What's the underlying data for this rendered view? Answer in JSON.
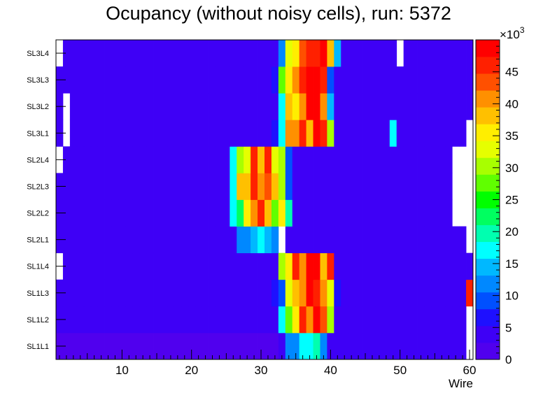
{
  "chart_data": {
    "type": "heatmap",
    "title": "Ocupancy (without noisy cells), run: 5372",
    "xlabel": "Wire",
    "ylabel": "",
    "x_range": [
      0.5,
      60.5
    ],
    "x_ticks": [
      10,
      20,
      30,
      40,
      50,
      60
    ],
    "y_categories": [
      "SL1L1",
      "SL1L2",
      "SL1L3",
      "SL1L4",
      "SL2L1",
      "SL2L2",
      "SL2L3",
      "SL2L4",
      "SL3L1",
      "SL3L2",
      "SL3L3",
      "SL3L4"
    ],
    "z_range": [
      0,
      50000
    ],
    "z_ticks": [
      0,
      5,
      10,
      15,
      20,
      25,
      30,
      35,
      40,
      45
    ],
    "z_multiplier_label": "×10",
    "z_multiplier_exp": "3",
    "palette": [
      "#5000ee",
      "#3e00f6",
      "#1e10ff",
      "#0050ff",
      "#0088ff",
      "#00b8ff",
      "#00ffff",
      "#00ffb0",
      "#00ff60",
      "#00ff00",
      "#60ff00",
      "#a8ff00",
      "#e6ff00",
      "#ffee00",
      "#ffc000",
      "#ff9000",
      "#ff5000",
      "#ff2000",
      "#ff0000"
    ],
    "wire_values_k": [
      [
        0,
        0,
        0,
        0,
        0,
        0,
        0,
        0,
        0,
        0,
        0,
        0,
        0,
        0,
        0,
        0,
        0,
        0,
        0,
        0,
        0,
        0,
        0,
        0,
        0,
        0,
        0,
        0,
        0,
        0,
        0,
        0,
        4,
        13,
        13,
        17,
        17,
        19,
        13,
        5,
        3,
        3,
        3,
        3,
        3,
        3,
        3,
        3,
        3,
        3,
        3,
        3,
        3,
        3,
        3,
        3,
        3,
        3,
        3,
        null
      ],
      [
        3,
        3,
        3,
        3,
        3,
        3,
        3,
        3,
        3,
        3,
        3,
        3,
        3,
        3,
        3,
        3,
        3,
        3,
        3,
        3,
        3,
        3,
        3,
        3,
        3,
        3,
        3,
        3,
        5,
        5,
        5,
        5,
        16,
        27,
        36,
        45,
        40,
        49,
        43,
        30,
        5,
        3,
        3,
        3,
        3,
        3,
        3,
        3,
        3,
        3,
        3,
        3,
        3,
        3,
        3,
        3,
        3,
        3,
        3,
        null
      ],
      [
        3,
        3,
        3,
        3,
        3,
        3,
        3,
        3,
        3,
        3,
        3,
        3,
        3,
        3,
        3,
        3,
        3,
        3,
        3,
        3,
        3,
        3,
        3,
        3,
        3,
        3,
        3,
        3,
        5,
        5,
        5,
        7,
        9,
        34,
        37,
        41,
        49,
        45,
        40,
        34,
        7,
        3,
        3,
        3,
        3,
        3,
        3,
        3,
        3,
        3,
        3,
        3,
        3,
        3,
        3,
        3,
        3,
        3,
        3,
        45
      ],
      [
        null,
        3,
        3,
        3,
        3,
        3,
        3,
        3,
        3,
        3,
        3,
        3,
        3,
        3,
        3,
        3,
        3,
        3,
        3,
        3,
        3,
        3,
        3,
        3,
        3,
        3,
        3,
        3,
        5,
        5,
        5,
        5,
        30,
        35,
        45,
        41,
        49,
        49,
        39,
        45,
        5,
        3,
        3,
        3,
        3,
        3,
        3,
        3,
        3,
        3,
        3,
        3,
        3,
        3,
        3,
        3,
        3,
        3,
        3,
        3
      ],
      [
        3,
        3,
        3,
        3,
        3,
        3,
        3,
        3,
        3,
        3,
        3,
        3,
        3,
        3,
        3,
        3,
        3,
        3,
        3,
        3,
        3,
        3,
        3,
        3,
        3,
        5,
        12,
        12,
        15,
        17,
        15,
        12,
        null,
        3,
        3,
        3,
        3,
        3,
        3,
        3,
        3,
        3,
        3,
        3,
        3,
        3,
        3,
        3,
        3,
        3,
        3,
        3,
        3,
        3,
        3,
        3,
        3,
        3,
        3,
        null
      ],
      [
        3,
        3,
        3,
        3,
        3,
        3,
        3,
        3,
        3,
        3,
        3,
        3,
        3,
        3,
        3,
        3,
        3,
        3,
        3,
        5,
        5,
        5,
        5,
        5,
        5,
        17,
        22,
        35,
        40,
        45,
        37,
        28,
        35,
        20,
        5,
        5,
        5,
        3,
        3,
        3,
        3,
        3,
        3,
        3,
        3,
        3,
        3,
        3,
        3,
        3,
        3,
        3,
        3,
        3,
        3,
        3,
        3,
        null,
        null,
        null
      ],
      [
        3,
        3,
        3,
        3,
        3,
        3,
        3,
        3,
        3,
        3,
        3,
        3,
        3,
        3,
        3,
        3,
        3,
        5,
        5,
        5,
        5,
        5,
        5,
        5,
        5,
        17,
        37,
        38,
        45,
        40,
        43,
        37,
        30,
        8,
        3,
        3,
        3,
        3,
        3,
        3,
        3,
        3,
        3,
        3,
        3,
        3,
        3,
        3,
        3,
        3,
        3,
        3,
        3,
        3,
        3,
        3,
        3,
        null,
        null,
        null
      ],
      [
        null,
        3,
        3,
        3,
        3,
        3,
        3,
        3,
        3,
        3,
        3,
        3,
        3,
        3,
        3,
        3,
        3,
        3,
        3,
        5,
        5,
        5,
        5,
        5,
        5,
        17,
        30,
        33,
        45,
        37,
        45,
        33,
        30,
        8,
        3,
        3,
        3,
        3,
        3,
        3,
        3,
        3,
        3,
        3,
        3,
        3,
        3,
        3,
        3,
        3,
        3,
        3,
        3,
        3,
        3,
        3,
        3,
        null,
        null,
        null
      ],
      [
        3,
        null,
        3,
        3,
        3,
        3,
        3,
        3,
        3,
        3,
        3,
        3,
        3,
        3,
        3,
        3,
        3,
        3,
        3,
        3,
        3,
        3,
        3,
        3,
        3,
        3,
        3,
        3,
        5,
        5,
        5,
        7,
        18,
        42,
        42,
        45,
        38,
        49,
        45,
        30,
        5,
        5,
        5,
        5,
        3,
        3,
        3,
        3,
        16,
        3,
        3,
        3,
        3,
        3,
        3,
        3,
        3,
        3,
        3,
        null
      ],
      [
        3,
        null,
        3,
        3,
        3,
        3,
        3,
        3,
        3,
        3,
        3,
        3,
        3,
        3,
        3,
        3,
        3,
        3,
        3,
        3,
        3,
        3,
        3,
        3,
        3,
        3,
        3,
        3,
        3,
        5,
        5,
        5,
        18,
        38,
        35,
        40,
        49,
        49,
        40,
        15,
        5,
        5,
        5,
        5,
        5,
        3,
        3,
        3,
        3,
        3,
        3,
        3,
        3,
        3,
        3,
        3,
        3,
        3,
        3,
        3
      ],
      [
        3,
        3,
        3,
        3,
        3,
        3,
        3,
        3,
        3,
        3,
        3,
        3,
        3,
        3,
        3,
        3,
        3,
        3,
        3,
        3,
        3,
        3,
        3,
        3,
        3,
        3,
        3,
        3,
        5,
        5,
        5,
        7,
        27,
        35,
        42,
        47,
        49,
        49,
        45,
        8,
        5,
        5,
        5,
        5,
        3,
        3,
        3,
        3,
        3,
        3,
        3,
        3,
        3,
        3,
        3,
        3,
        3,
        3,
        3,
        3
      ],
      [
        null,
        3,
        3,
        3,
        3,
        3,
        3,
        3,
        3,
        3,
        3,
        3,
        3,
        3,
        3,
        3,
        3,
        3,
        3,
        3,
        3,
        3,
        3,
        3,
        3,
        3,
        3,
        3,
        3,
        5,
        5,
        5,
        12,
        33,
        35,
        43,
        45,
        45,
        49,
        37,
        15,
        5,
        5,
        5,
        5,
        3,
        3,
        3,
        3,
        null,
        3,
        3,
        3,
        3,
        3,
        3,
        3,
        3,
        3,
        3
      ]
    ]
  }
}
